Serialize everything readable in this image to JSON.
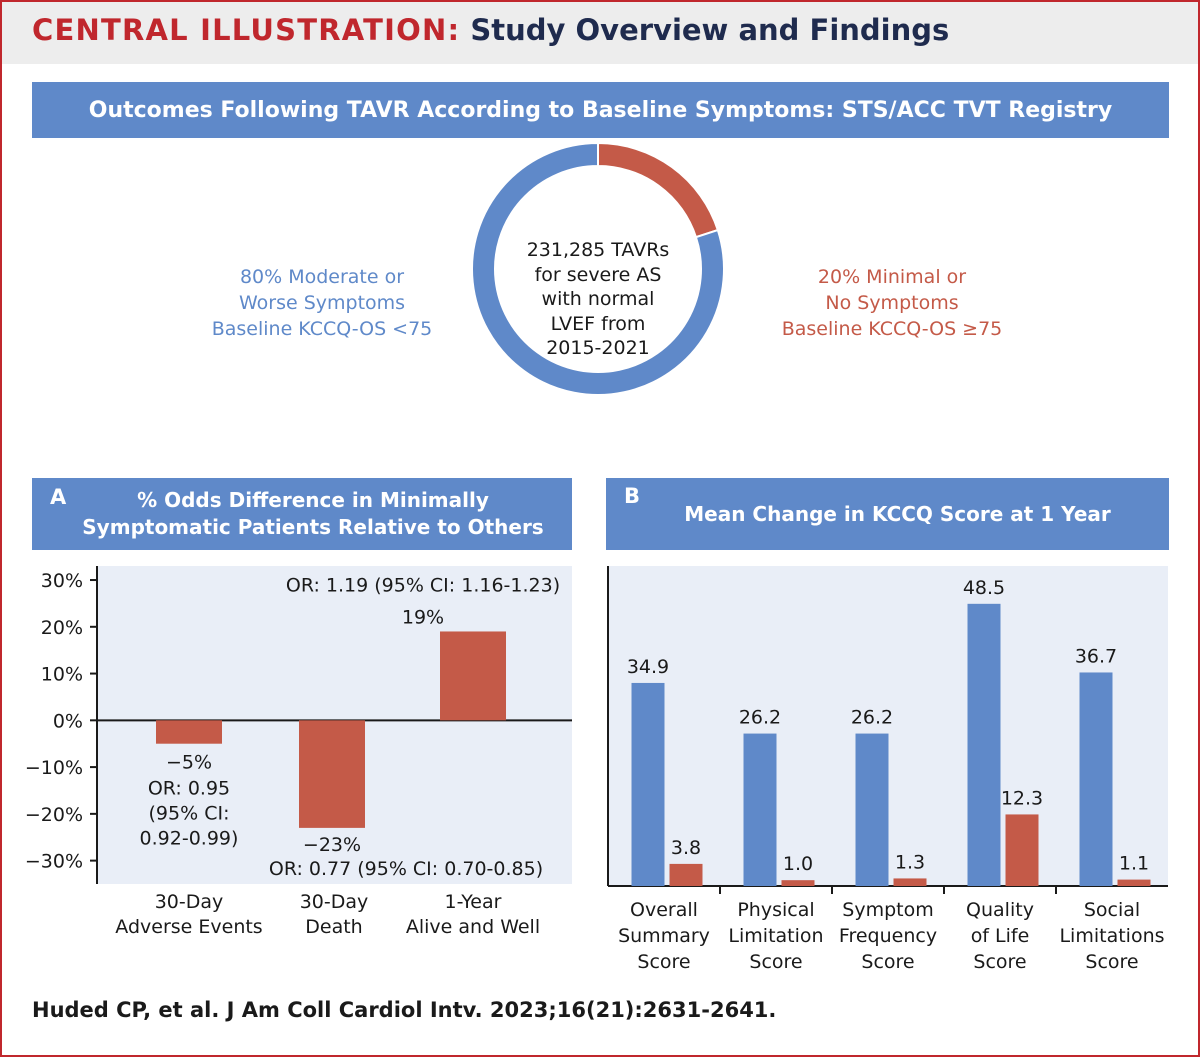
{
  "header": {
    "label": "CENTRAL ILLUSTRATION:",
    "title": "Study Overview and Findings"
  },
  "banner": {
    "title": "Outcomes Following TAVR According to Baseline Symptoms: STS/ACC TVT Registry"
  },
  "overview": {
    "center_text": "231,285 TAVRs\nfor severe AS\nwith normal\nLVEF from\n2015-2021",
    "left_label": "80% Moderate or\nWorse Symptoms\nBaseline KCCQ-OS <75",
    "right_label": "20% Minimal or\nNo Symptoms\nBaseline KCCQ-OS ≥75"
  },
  "panel_a": {
    "letter": "A",
    "title": "% Odds Difference in Minimally\nSymptomatic Patients Relative to Others"
  },
  "panel_b": {
    "letter": "B",
    "title": "Mean Change in KCCQ Score at 1 Year"
  },
  "colors": {
    "blue": "#5f89c9",
    "red": "#c45a48",
    "plot_bg": "#e9eef7",
    "accent": "#c0272d",
    "header_bg": "#ededed",
    "title_navy": "#1f2b4e"
  },
  "chart_data": [
    {
      "type": "pie",
      "values": [
        80,
        20
      ],
      "labels": [
        "80% Moderate or Worse Symptoms Baseline KCCQ-OS <75",
        "20% Minimal or No Symptoms Baseline KCCQ-OS ≥75"
      ],
      "colors": [
        "#5f89c9",
        "#c45a48"
      ],
      "donut": true
    },
    {
      "type": "bar",
      "title": "% Odds Difference in Minimally Symptomatic Patients Relative to Others",
      "categories": [
        "30-Day\nAdverse Events",
        "30-Day\nDeath",
        "1-Year\nAlive and Well"
      ],
      "values": [
        -5,
        -23,
        19
      ],
      "data_labels": [
        "−5%",
        "−23%",
        "19%"
      ],
      "annotations": [
        "OR: 0.95\n(95% CI:\n0.92-0.99)",
        "OR: 0.77 (95% CI: 0.70-0.85)",
        "OR: 1.19 (95% CI: 1.16-1.23)"
      ],
      "ylim": [
        -35,
        33
      ],
      "yticks": [
        30,
        20,
        10,
        0,
        -10,
        -20,
        -30
      ],
      "ytick_labels": [
        "30%",
        "20%",
        "10%",
        "0%",
        "−10%",
        "−20%",
        "−30%"
      ],
      "grid": false
    },
    {
      "type": "bar",
      "title": "Mean Change in KCCQ Score at 1 Year",
      "categories": [
        "Overall\nSummary\nScore",
        "Physical\nLimitation\nScore",
        "Symptom\nFrequency\nScore",
        "Quality\nof Life\nScore",
        "Social\nLimitations\nScore"
      ],
      "series": [
        {
          "values": [
            34.9,
            26.2,
            26.2,
            48.5,
            36.7
          ],
          "labels": [
            "34.9",
            "26.2",
            "26.2",
            "48.5",
            "36.7"
          ],
          "color": "#5f89c9"
        },
        {
          "values": [
            3.8,
            1.0,
            1.3,
            12.3,
            1.1
          ],
          "labels": [
            "3.8",
            "1.0",
            "1.3",
            "12.3",
            "1.1"
          ],
          "color": "#c45a48"
        }
      ],
      "ylim": [
        0,
        55
      ],
      "grid": false
    }
  ],
  "footer": {
    "citation": "Huded CP, et al. J Am Coll Cardiol Intv. 2023;16(21):2631-2641."
  }
}
